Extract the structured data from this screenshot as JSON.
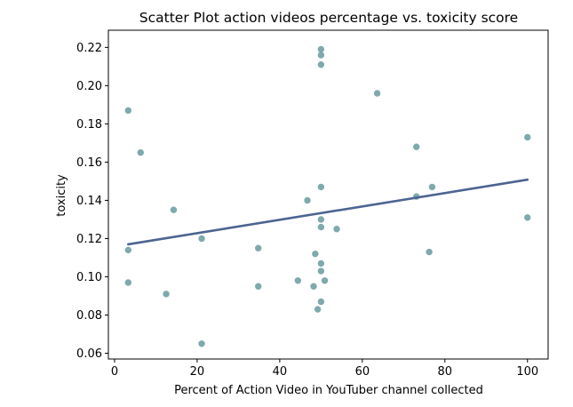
{
  "chart_data": {
    "type": "scatter",
    "title": "Scatter Plot action videos percentage vs. toxicity score",
    "xlabel": "Percent of Action Video in YouTuber channel collected",
    "ylabel": "toxicity",
    "xlim": [
      -1.5,
      105
    ],
    "ylim": [
      0.057,
      0.229
    ],
    "xticks": [
      0,
      20,
      40,
      60,
      80,
      100
    ],
    "xtick_labels": [
      "0",
      "20",
      "40",
      "60",
      "80",
      "100"
    ],
    "yticks": [
      0.06,
      0.08,
      0.1,
      0.12,
      0.14,
      0.16,
      0.18,
      0.2,
      0.22
    ],
    "ytick_labels": [
      "0.06",
      "0.08",
      "0.10",
      "0.12",
      "0.14",
      "0.16",
      "0.18",
      "0.20",
      "0.22"
    ],
    "grid": false,
    "points": [
      {
        "x": 3.3,
        "y": 0.187
      },
      {
        "x": 3.3,
        "y": 0.114
      },
      {
        "x": 3.3,
        "y": 0.097
      },
      {
        "x": 6.3,
        "y": 0.165
      },
      {
        "x": 12.5,
        "y": 0.091
      },
      {
        "x": 14.3,
        "y": 0.135
      },
      {
        "x": 21.1,
        "y": 0.12
      },
      {
        "x": 21.1,
        "y": 0.065
      },
      {
        "x": 34.8,
        "y": 0.115
      },
      {
        "x": 34.8,
        "y": 0.095
      },
      {
        "x": 44.4,
        "y": 0.098
      },
      {
        "x": 46.7,
        "y": 0.14
      },
      {
        "x": 48.2,
        "y": 0.095
      },
      {
        "x": 48.6,
        "y": 0.112
      },
      {
        "x": 49.2,
        "y": 0.083
      },
      {
        "x": 50.0,
        "y": 0.219
      },
      {
        "x": 50.0,
        "y": 0.216
      },
      {
        "x": 50.0,
        "y": 0.211
      },
      {
        "x": 50.0,
        "y": 0.147
      },
      {
        "x": 50.0,
        "y": 0.13
      },
      {
        "x": 50.0,
        "y": 0.126
      },
      {
        "x": 50.0,
        "y": 0.107
      },
      {
        "x": 50.0,
        "y": 0.103
      },
      {
        "x": 50.0,
        "y": 0.087
      },
      {
        "x": 50.9,
        "y": 0.098
      },
      {
        "x": 53.8,
        "y": 0.125
      },
      {
        "x": 63.6,
        "y": 0.196
      },
      {
        "x": 73.1,
        "y": 0.168
      },
      {
        "x": 73.1,
        "y": 0.142
      },
      {
        "x": 76.2,
        "y": 0.113
      },
      {
        "x": 76.9,
        "y": 0.147
      },
      {
        "x": 100.0,
        "y": 0.173
      },
      {
        "x": 100.0,
        "y": 0.131
      }
    ],
    "trendline": {
      "x": [
        3.3,
        100.0
      ],
      "y": [
        0.117,
        0.1508
      ]
    },
    "point_color": "#7fa9ad",
    "line_color": "#4c6491"
  }
}
